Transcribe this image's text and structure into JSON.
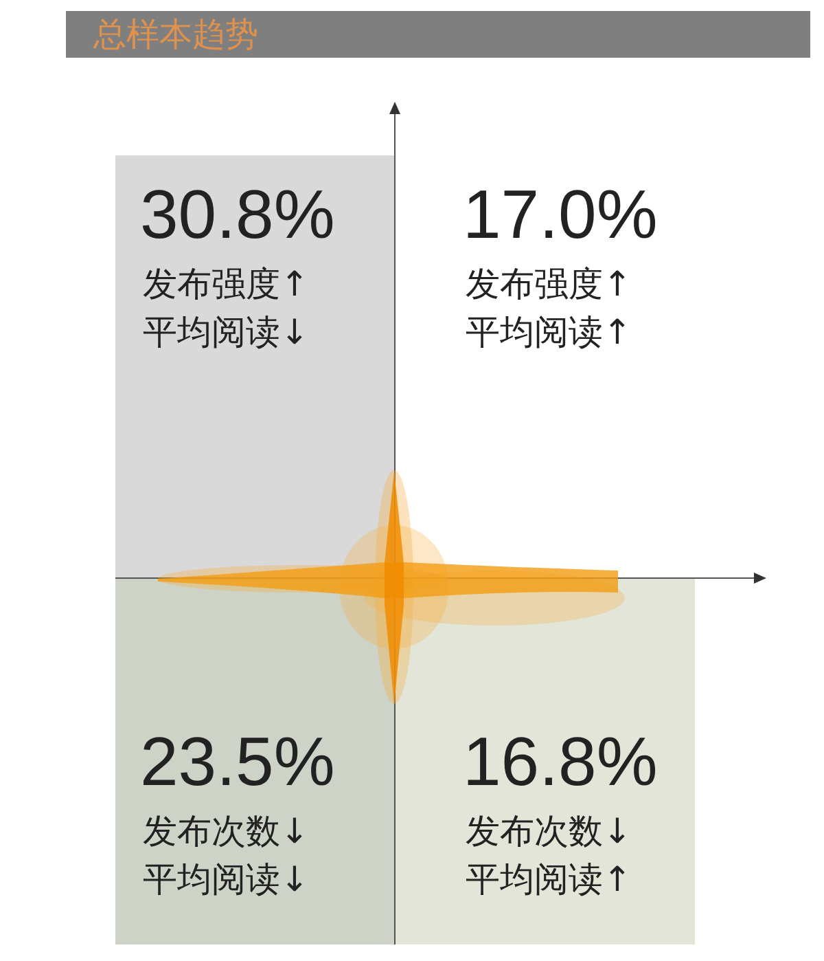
{
  "chart_data": {
    "type": "other",
    "title": "总样本趋势",
    "categories": [
      "发布强度↑\n平均阅读↓",
      "发布强度↑\n平均阅读↑",
      "发布次数↓\n平均阅读↓",
      "发布次数↓\n平均阅读↑"
    ],
    "values": [
      30.8,
      17.0,
      23.5,
      16.8
    ],
    "value_labels": [
      "30.8%",
      "17.0%",
      "23.5%",
      "16.8%"
    ],
    "colors": [
      "#d9d9d9",
      "#ffffff",
      "#cdd3c7",
      "#e2e5d8"
    ]
  }
}
